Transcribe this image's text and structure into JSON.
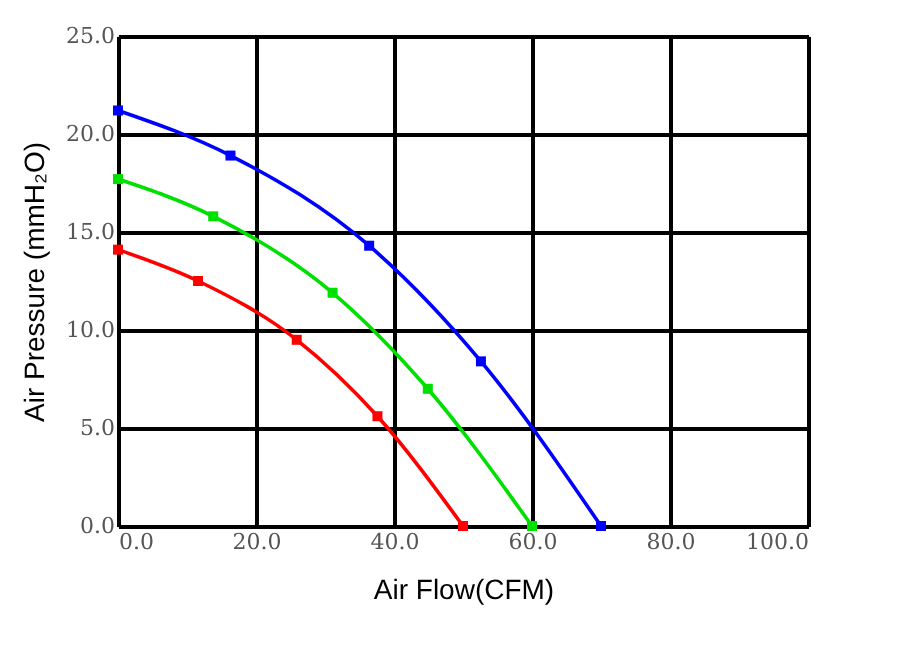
{
  "chart_data": {
    "type": "line",
    "xlabel": "Air Flow(CFM)",
    "ylabel": "Air Pressure (mmH₂O)",
    "xlim": [
      0,
      100
    ],
    "xticks": [
      {
        "value": 0,
        "label": "0.0"
      },
      {
        "value": 20,
        "label": "20.0"
      },
      {
        "value": 40,
        "label": "40.0"
      },
      {
        "value": 60,
        "label": "60.0"
      },
      {
        "value": 80,
        "label": "80.0"
      },
      {
        "value": 100,
        "label": "100.0"
      }
    ],
    "ylim": [
      0,
      25
    ],
    "yticks": [
      {
        "value": 0,
        "label": "0.0"
      },
      {
        "value": 5,
        "label": "5.0"
      },
      {
        "value": 10,
        "label": "10.0"
      },
      {
        "value": 15,
        "label": "15.0"
      },
      {
        "value": 20,
        "label": "20.0"
      },
      {
        "value": 25,
        "label": "25.0"
      }
    ],
    "grid": true,
    "legend": false,
    "marker": "square",
    "line_style": "solid",
    "series": [
      {
        "color": "#0000ff",
        "x": [
          0,
          16.3,
          36.4,
          52.6,
          70
        ],
        "values": [
          21.2,
          18.9,
          14.3,
          8.4,
          0
        ]
      },
      {
        "color": "#00e000",
        "x": [
          0,
          13.8,
          31.1,
          44.9,
          60
        ],
        "values": [
          17.7,
          15.8,
          11.9,
          7.0,
          0
        ]
      },
      {
        "color": "#ff0000",
        "x": [
          0,
          11.6,
          25.9,
          37.6,
          50
        ],
        "values": [
          14.1,
          12.5,
          9.5,
          5.6,
          0
        ]
      }
    ]
  }
}
